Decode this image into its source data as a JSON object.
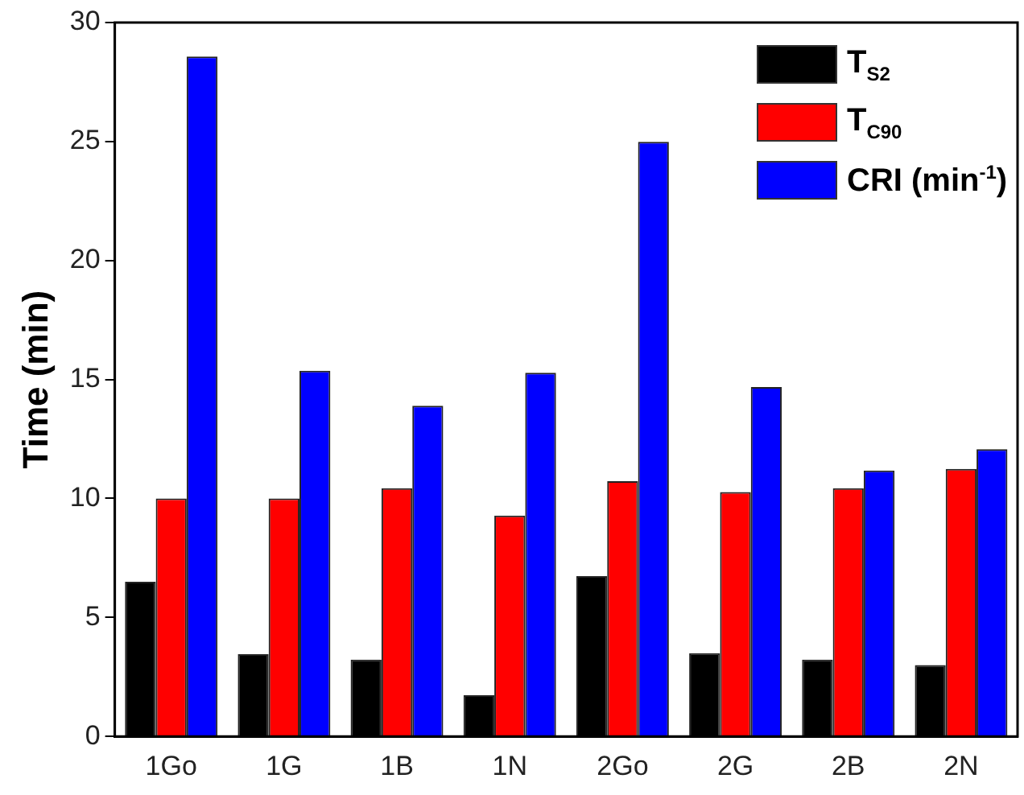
{
  "chart_data": {
    "type": "bar",
    "ylabel": "Time (min)",
    "categories": [
      "1Go",
      "1G",
      "1B",
      "1N",
      "2Go",
      "2G",
      "2B",
      "2N"
    ],
    "series": [
      {
        "name": "T$_{S2}$",
        "color": "#000000",
        "values": [
          6.5,
          3.46,
          3.23,
          1.73,
          6.74,
          3.5,
          3.23,
          3.0
        ]
      },
      {
        "name": "T$_{C90}$",
        "color": "#ff0000",
        "values": [
          10.0,
          10.0,
          10.43,
          9.28,
          10.73,
          10.27,
          10.43,
          11.24
        ]
      },
      {
        "name": "CRI (min$^{-1}$)",
        "color": "#0000ff",
        "values": [
          28.57,
          15.37,
          13.9,
          15.28,
          24.99,
          14.68,
          11.17,
          12.07
        ]
      }
    ],
    "ylim": [
      0,
      30
    ],
    "yticks": [
      0,
      5,
      10,
      15,
      20,
      25,
      30
    ],
    "grid": false,
    "legend": "top right"
  }
}
